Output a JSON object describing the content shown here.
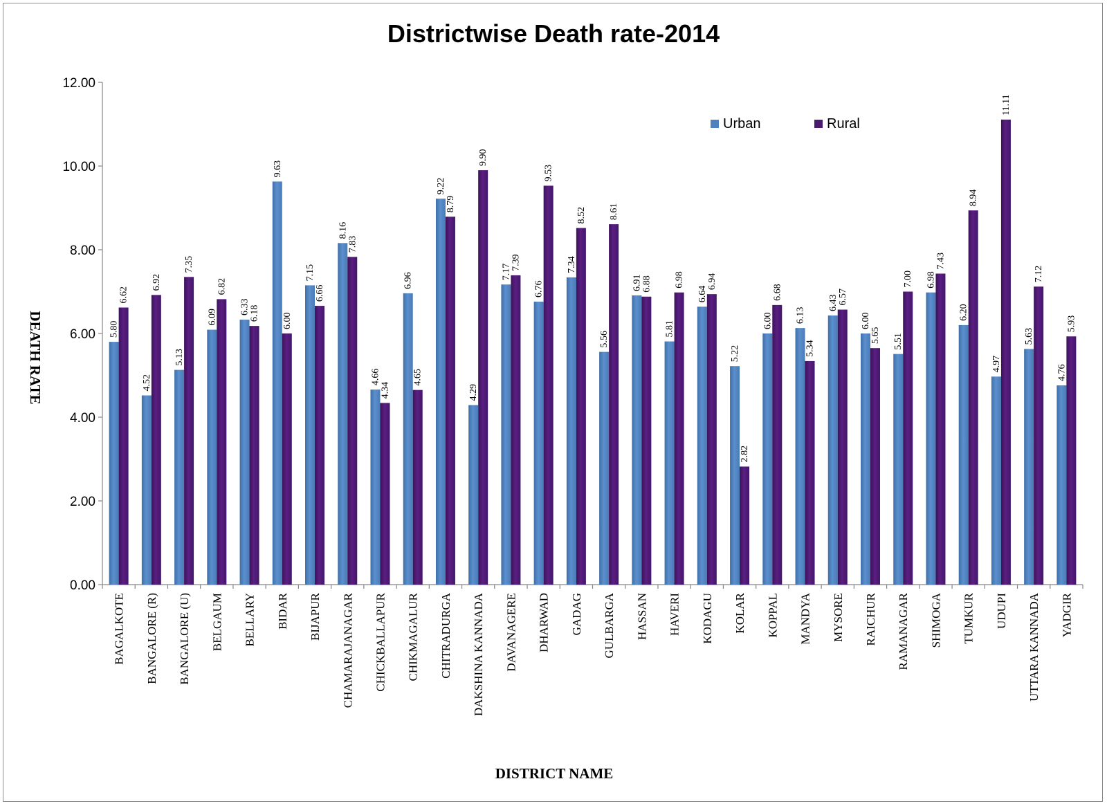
{
  "chart_data": {
    "type": "bar",
    "title": "Districtwise Death rate-2014",
    "xlabel": "DISTRICT NAME",
    "ylabel": "DEATH RATE",
    "ylim": [
      0,
      12
    ],
    "yticks": [
      "0.00",
      "2.00",
      "4.00",
      "6.00",
      "8.00",
      "10.00",
      "12.00"
    ],
    "grid": false,
    "legend_position": "top-right",
    "colors": {
      "Urban": "#4f81bd",
      "Rural": "#4b1a6e"
    },
    "categories": [
      "BAGALKOTE",
      "BANGALORE (R)",
      "BANGALORE (U)",
      "BELGAUM",
      "BELLARY",
      "BIDAR",
      "BIJAPUR",
      "CHAMARAJANAGAR",
      "CHICKBALLAPUR",
      "CHIKMAGALUR",
      "CHITRADURGA",
      "DAKSHINA KANNADA",
      "DAVANAGERE",
      "DHARWAD",
      "GADAG",
      "GULBARGA",
      "HASSAN",
      "HAVERI",
      "KODAGU",
      "KOLAR",
      "KOPPAL",
      "MANDYA",
      "MYSORE",
      "RAICHUR",
      "RAMANAGAR",
      "SHIMOGA",
      "TUMKUR",
      "UDUPI",
      "UTTARA KANNADA",
      "YADGIR"
    ],
    "series": [
      {
        "name": "Urban",
        "values": [
          5.8,
          4.52,
          5.13,
          6.09,
          6.33,
          9.63,
          7.15,
          8.16,
          4.66,
          6.96,
          9.22,
          4.29,
          7.17,
          6.76,
          7.34,
          5.56,
          6.91,
          5.81,
          6.64,
          5.22,
          6.0,
          6.13,
          6.43,
          6.0,
          5.51,
          6.98,
          6.2,
          4.97,
          5.63,
          4.76
        ]
      },
      {
        "name": "Rural",
        "values": [
          6.62,
          6.92,
          7.35,
          6.82,
          6.18,
          6.0,
          6.66,
          7.83,
          4.34,
          4.65,
          8.79,
          9.9,
          7.39,
          9.53,
          8.52,
          8.61,
          6.88,
          6.98,
          6.94,
          2.82,
          6.68,
          5.34,
          6.57,
          5.65,
          7.0,
          7.43,
          8.94,
          11.11,
          7.12,
          5.93
        ]
      }
    ]
  }
}
